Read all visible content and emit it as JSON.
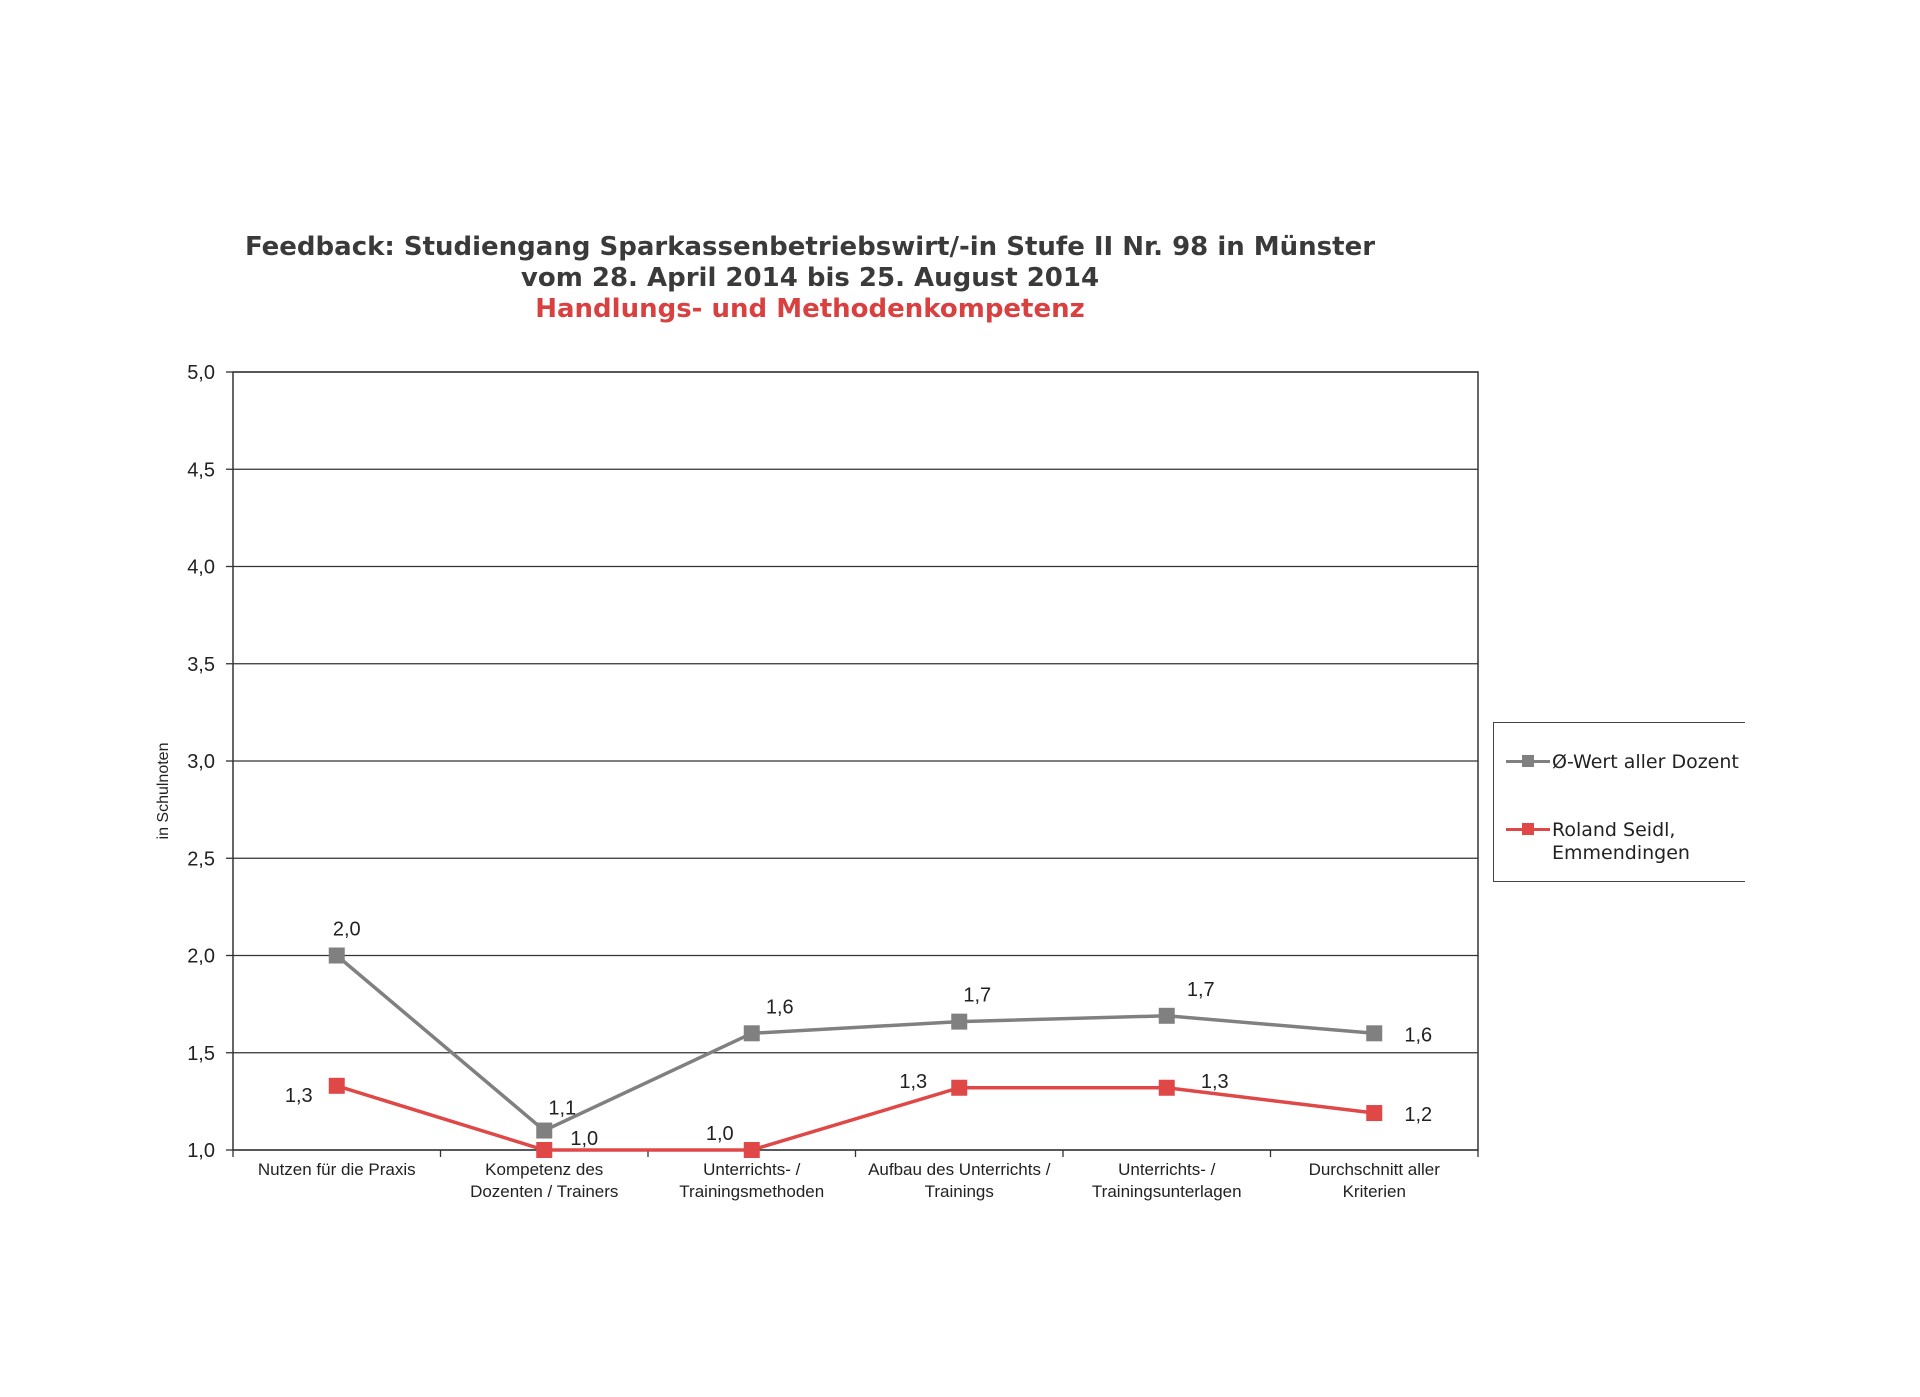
{
  "title_line1": "Feedback: Studiengang Sparkassenbetriebswirt/-in Stufe II Nr. 98 in Münster",
  "title_line2": "vom 28. April 2014 bis 25. August 2014",
  "title_line3": "Handlungs- und Methodenkompetenz",
  "colors": {
    "series1": "#808080",
    "series2": "#e04848",
    "title_accent": "#d94141"
  },
  "chart_data": {
    "type": "line",
    "ylabel": "in Schulnoten",
    "ylim": [
      1.0,
      5.0
    ],
    "yticks": [
      "1,0",
      "1,5",
      "2,0",
      "2,5",
      "3,0",
      "3,5",
      "4,0",
      "4,5",
      "5,0"
    ],
    "grid": true,
    "legend": "right",
    "categories": [
      "Nutzen für die Praxis",
      "Kompetenz des\nDozenten / Trainers",
      "Unterrichts- /\nTrainingsmethoden",
      "Aufbau des Unterrichts /\nTrainings",
      "Unterrichts- /\nTrainingsunterlagen",
      "Durchschnitt aller\nKriterien"
    ],
    "series": [
      {
        "name": "Ø-Wert aller Dozent",
        "values": [
          2.0,
          1.1,
          1.6,
          1.66,
          1.69,
          1.6
        ],
        "labels": [
          "2,0",
          "1,1",
          "1,6",
          "1,7",
          "1,7",
          "1,6"
        ]
      },
      {
        "name": "Roland Seidl,\nEmmendingen",
        "values": [
          1.33,
          1.0,
          1.0,
          1.32,
          1.32,
          1.19
        ],
        "labels": [
          "1,3",
          "1,0",
          "1,0",
          "1,3",
          "1,3",
          "1,2"
        ]
      }
    ]
  }
}
